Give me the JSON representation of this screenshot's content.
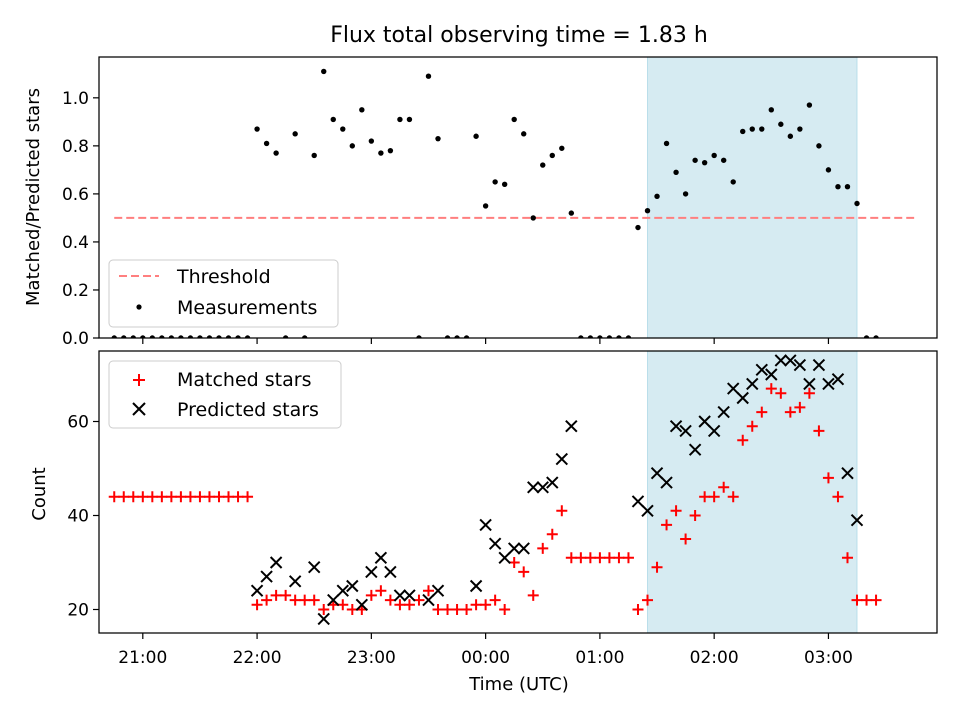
{
  "title": "Flux total observing time = 1.83 h",
  "x_axis": {
    "label": "Time (UTC)",
    "ticks": [
      {
        "t": 21.0,
        "label": "21:00"
      },
      {
        "t": 22.0,
        "label": "22:00"
      },
      {
        "t": 23.0,
        "label": "23:00"
      },
      {
        "t": 24.0,
        "label": "00:00"
      },
      {
        "t": 25.0,
        "label": "01:00"
      },
      {
        "t": 26.0,
        "label": "02:00"
      },
      {
        "t": 27.0,
        "label": "03:00"
      }
    ]
  },
  "chart_data": [
    {
      "type": "scatter",
      "title": "Flux total observing time = 1.83 h",
      "ylabel": "Matched/Predicted stars",
      "xlabel": "",
      "xlim": [
        "20:37",
        "03:57"
      ],
      "ylim": [
        0,
        1.17
      ],
      "yticks": [
        {
          "v": 0.0,
          "label": "0.0"
        },
        {
          "v": 0.2,
          "label": "0.2"
        },
        {
          "v": 0.4,
          "label": "0.4"
        },
        {
          "v": 0.6,
          "label": "0.6"
        },
        {
          "v": 0.8,
          "label": "0.8"
        },
        {
          "v": 1.0,
          "label": "1.0"
        }
      ],
      "legend_location": "lower-left",
      "shaded_region": {
        "start": "01:25",
        "end": "03:15",
        "color": "#add8e6"
      },
      "threshold": {
        "name": "Threshold",
        "value": 0.5,
        "x_start": "20:45",
        "x_end": "03:45",
        "color": "#ff7f7f"
      },
      "series": [
        {
          "name": "Measurements",
          "marker": "dot",
          "color": "#000000",
          "x": [
            "20:45",
            "20:50",
            "20:55",
            "21:00",
            "21:05",
            "21:10",
            "21:15",
            "21:20",
            "21:25",
            "21:30",
            "21:35",
            "21:40",
            "21:45",
            "21:50",
            "21:55",
            "22:00",
            "22:05",
            "22:10",
            "22:15",
            "22:20",
            "22:25",
            "22:30",
            "22:35",
            "22:40",
            "22:45",
            "22:50",
            "22:55",
            "23:00",
            "23:05",
            "23:10",
            "23:15",
            "23:20",
            "23:25",
            "23:30",
            "23:35",
            "23:40",
            "23:45",
            "23:50",
            "23:55",
            "00:00",
            "00:05",
            "00:10",
            "00:15",
            "00:20",
            "00:25",
            "00:30",
            "00:35",
            "00:40",
            "00:45",
            "00:50",
            "00:55",
            "01:00",
            "01:05",
            "01:10",
            "01:15",
            "01:20",
            "01:25",
            "01:30",
            "01:35",
            "01:40",
            "01:45",
            "01:50",
            "01:55",
            "02:00",
            "02:05",
            "02:10",
            "02:15",
            "02:20",
            "02:25",
            "02:30",
            "02:35",
            "02:40",
            "02:45",
            "02:50",
            "02:55",
            "03:00",
            "03:05",
            "03:10",
            "03:15",
            "03:20",
            "03:25"
          ],
          "y": [
            0,
            0,
            0,
            0,
            0,
            0,
            0,
            0,
            0,
            0,
            0,
            0,
            0,
            0,
            0,
            0.87,
            0.81,
            0.77,
            0,
            0.85,
            0,
            0.76,
            1.11,
            0.91,
            0.87,
            0.8,
            0.95,
            0.82,
            0.77,
            0.78,
            0.91,
            0.91,
            0,
            1.09,
            0.83,
            0,
            0,
            0,
            0.84,
            0.55,
            0.65,
            0.64,
            0.91,
            0.85,
            0.5,
            0.72,
            0.76,
            0.79,
            0.52,
            0,
            0,
            0,
            0,
            0,
            0,
            0.46,
            0.53,
            0.59,
            0.81,
            0.69,
            0.6,
            0.74,
            0.73,
            0.76,
            0.74,
            0.65,
            0.86,
            0.87,
            0.87,
            0.95,
            0.89,
            0.84,
            0.87,
            0.97,
            0.8,
            0.7,
            0.63,
            0.63,
            0.56,
            0,
            0
          ]
        }
      ]
    },
    {
      "type": "scatter",
      "title": "",
      "ylabel": "Count",
      "xlabel": "Time (UTC)",
      "xlim": [
        "20:37",
        "03:57"
      ],
      "ylim": [
        15,
        75
      ],
      "yticks": [
        {
          "v": 20,
          "label": "20"
        },
        {
          "v": 40,
          "label": "40"
        },
        {
          "v": 60,
          "label": "60"
        }
      ],
      "legend_location": "upper-left",
      "shaded_region": {
        "start": "01:25",
        "end": "03:15",
        "color": "#add8e6"
      },
      "series": [
        {
          "name": "Matched stars",
          "marker": "plus",
          "color": "#ff0000",
          "x": [
            "20:45",
            "20:50",
            "20:55",
            "21:00",
            "21:05",
            "21:10",
            "21:15",
            "21:20",
            "21:25",
            "21:30",
            "21:35",
            "21:40",
            "21:45",
            "21:50",
            "21:55",
            "22:00",
            "22:05",
            "22:10",
            "22:15",
            "22:20",
            "22:25",
            "22:30",
            "22:35",
            "22:40",
            "22:45",
            "22:50",
            "22:55",
            "23:00",
            "23:05",
            "23:10",
            "23:15",
            "23:20",
            "23:25",
            "23:30",
            "23:35",
            "23:40",
            "23:45",
            "23:50",
            "23:55",
            "00:00",
            "00:05",
            "00:10",
            "00:15",
            "00:20",
            "00:25",
            "00:30",
            "00:35",
            "00:40",
            "00:45",
            "00:50",
            "00:55",
            "01:00",
            "01:05",
            "01:10",
            "01:15",
            "01:20",
            "01:25",
            "01:30",
            "01:35",
            "01:40",
            "01:45",
            "01:50",
            "01:55",
            "02:00",
            "02:05",
            "02:10",
            "02:15",
            "02:20",
            "02:25",
            "02:30",
            "02:35",
            "02:40",
            "02:45",
            "02:50",
            "02:55",
            "03:00",
            "03:05",
            "03:10",
            "03:15",
            "03:20",
            "03:25"
          ],
          "y": [
            44,
            44,
            44,
            44,
            44,
            44,
            44,
            44,
            44,
            44,
            44,
            44,
            44,
            44,
            44,
            21,
            22,
            23,
            23,
            22,
            22,
            22,
            20,
            21,
            21,
            20,
            20,
            23,
            24,
            22,
            21,
            21,
            22,
            24,
            20,
            20,
            20,
            20,
            21,
            21,
            22,
            20,
            30,
            28,
            23,
            33,
            36,
            41,
            31,
            31,
            31,
            31,
            31,
            31,
            31,
            20,
            22,
            29,
            38,
            41,
            35,
            40,
            44,
            44,
            46,
            44,
            56,
            59,
            62,
            67,
            66,
            62,
            63,
            66,
            58,
            48,
            44,
            31,
            22,
            22,
            22
          ]
        },
        {
          "name": "Predicted stars",
          "marker": "x",
          "color": "#000000",
          "x": [
            "22:00",
            "22:05",
            "22:10",
            "22:20",
            "22:30",
            "22:35",
            "22:40",
            "22:45",
            "22:50",
            "22:55",
            "23:00",
            "23:05",
            "23:10",
            "23:15",
            "23:20",
            "23:30",
            "23:35",
            "23:55",
            "00:00",
            "00:05",
            "00:10",
            "00:15",
            "00:20",
            "00:25",
            "00:30",
            "00:35",
            "00:40",
            "00:45",
            "01:20",
            "01:25",
            "01:30",
            "01:35",
            "01:40",
            "01:45",
            "01:50",
            "01:55",
            "02:00",
            "02:05",
            "02:10",
            "02:15",
            "02:20",
            "02:25",
            "02:30",
            "02:35",
            "02:40",
            "02:45",
            "02:50",
            "02:55",
            "03:00",
            "03:05",
            "03:10",
            "03:15"
          ],
          "y": [
            24,
            27,
            30,
            26,
            29,
            18,
            22,
            24,
            25,
            21,
            28,
            31,
            28,
            23,
            23,
            22,
            24,
            25,
            38,
            34,
            31,
            33,
            33,
            46,
            46,
            47,
            52,
            59,
            43,
            41,
            49,
            47,
            59,
            58,
            54,
            60,
            58,
            62,
            67,
            65,
            68,
            71,
            70,
            73,
            73,
            72,
            68,
            72,
            68,
            69,
            49,
            39
          ]
        }
      ]
    }
  ]
}
